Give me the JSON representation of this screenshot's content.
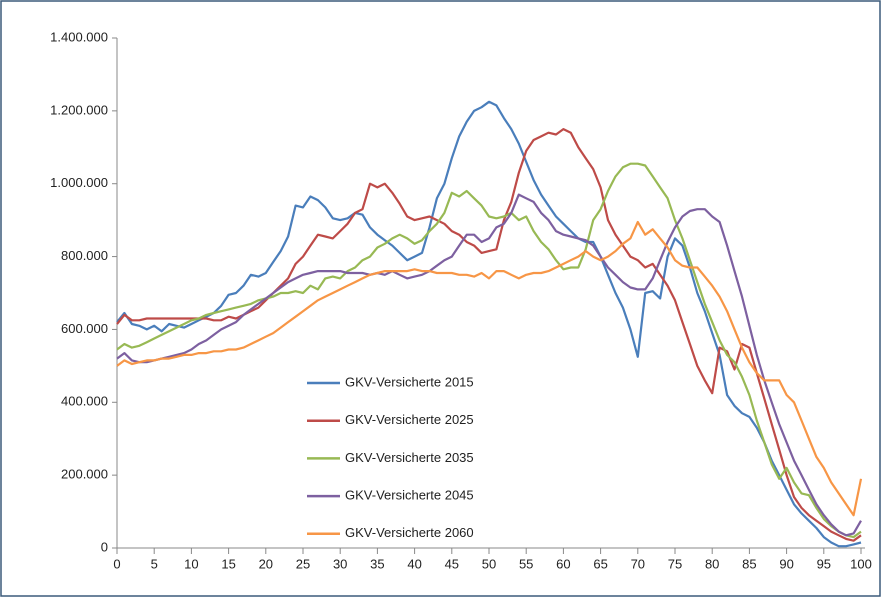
{
  "chart_data": {
    "type": "line",
    "x": [
      0,
      1,
      2,
      3,
      4,
      5,
      6,
      7,
      8,
      9,
      10,
      11,
      12,
      13,
      14,
      15,
      16,
      17,
      18,
      19,
      20,
      21,
      22,
      23,
      24,
      25,
      26,
      27,
      28,
      29,
      30,
      31,
      32,
      33,
      34,
      35,
      36,
      37,
      38,
      39,
      40,
      41,
      42,
      43,
      44,
      45,
      46,
      47,
      48,
      49,
      50,
      51,
      52,
      53,
      54,
      55,
      56,
      57,
      58,
      59,
      60,
      61,
      62,
      63,
      64,
      65,
      66,
      67,
      68,
      69,
      70,
      71,
      72,
      73,
      74,
      75,
      76,
      77,
      78,
      79,
      80,
      81,
      82,
      83,
      84,
      85,
      86,
      87,
      88,
      89,
      90,
      91,
      92,
      93,
      94,
      95,
      96,
      97,
      98,
      99,
      100
    ],
    "xlim": [
      0,
      100
    ],
    "xticks": [
      0,
      5,
      10,
      15,
      20,
      25,
      30,
      35,
      40,
      45,
      50,
      55,
      60,
      65,
      70,
      75,
      80,
      85,
      90,
      95,
      100
    ],
    "ylim": [
      0,
      1400000
    ],
    "yticks": [
      0,
      {
        "value": 200000,
        "label": "200.000"
      },
      {
        "value": 400000,
        "label": "400.000"
      },
      {
        "value": 600000,
        "label": "600.000"
      },
      {
        "value": 800000,
        "label": "800.000"
      },
      {
        "value": 1000000,
        "label": "1.000.000"
      },
      {
        "value": 1200000,
        "label": "1.200.000"
      },
      {
        "value": 1400000,
        "label": "1.400.000"
      }
    ],
    "grid": false,
    "legend": "inside",
    "series": [
      {
        "name": "GKV-Versicherte 2015",
        "color": "#4a7ebb",
        "values": [
          620000,
          645000,
          615000,
          610000,
          600000,
          610000,
          595000,
          615000,
          610000,
          605000,
          615000,
          625000,
          635000,
          645000,
          665000,
          695000,
          700000,
          720000,
          750000,
          745000,
          755000,
          785000,
          815000,
          855000,
          940000,
          935000,
          965000,
          955000,
          935000,
          905000,
          900000,
          905000,
          920000,
          915000,
          880000,
          860000,
          845000,
          830000,
          810000,
          790000,
          800000,
          810000,
          880000,
          960000,
          1000000,
          1070000,
          1130000,
          1170000,
          1200000,
          1210000,
          1225000,
          1215000,
          1180000,
          1150000,
          1110000,
          1060000,
          1010000,
          970000,
          940000,
          910000,
          890000,
          870000,
          850000,
          840000,
          840000,
          800000,
          750000,
          700000,
          660000,
          600000,
          525000,
          700000,
          705000,
          685000,
          800000,
          850000,
          830000,
          770000,
          700000,
          650000,
          590000,
          530000,
          420000,
          390000,
          370000,
          360000,
          330000,
          290000,
          240000,
          200000,
          160000,
          120000,
          95000,
          75000,
          55000,
          30000,
          15000,
          5000,
          5000,
          10000,
          15000
        ]
      },
      {
        "name": "GKV-Versicherte 2025",
        "color": "#be4b48",
        "values": [
          615000,
          640000,
          625000,
          625000,
          630000,
          630000,
          630000,
          630000,
          630000,
          630000,
          630000,
          630000,
          630000,
          625000,
          625000,
          635000,
          630000,
          640000,
          650000,
          660000,
          680000,
          700000,
          720000,
          740000,
          780000,
          800000,
          830000,
          860000,
          855000,
          850000,
          870000,
          890000,
          920000,
          930000,
          1000000,
          990000,
          1000000,
          975000,
          945000,
          910000,
          900000,
          905000,
          910000,
          900000,
          890000,
          870000,
          860000,
          840000,
          830000,
          810000,
          815000,
          820000,
          900000,
          950000,
          1030000,
          1090000,
          1120000,
          1130000,
          1140000,
          1135000,
          1150000,
          1140000,
          1100000,
          1070000,
          1040000,
          990000,
          900000,
          860000,
          830000,
          800000,
          790000,
          770000,
          780000,
          750000,
          720000,
          680000,
          620000,
          560000,
          500000,
          460000,
          425000,
          550000,
          540000,
          490000,
          560000,
          550000,
          480000,
          410000,
          340000,
          270000,
          200000,
          140000,
          110000,
          90000,
          75000,
          60000,
          45000,
          35000,
          25000,
          20000,
          35000
        ]
      },
      {
        "name": "GKV-Versicherte 2035",
        "color": "#98b954",
        "values": [
          545000,
          560000,
          550000,
          555000,
          565000,
          575000,
          585000,
          595000,
          605000,
          615000,
          625000,
          630000,
          640000,
          645000,
          650000,
          655000,
          660000,
          665000,
          670000,
          680000,
          685000,
          690000,
          700000,
          700000,
          705000,
          700000,
          720000,
          710000,
          740000,
          745000,
          740000,
          760000,
          770000,
          790000,
          800000,
          825000,
          835000,
          850000,
          860000,
          850000,
          835000,
          845000,
          870000,
          890000,
          920000,
          975000,
          965000,
          980000,
          960000,
          940000,
          910000,
          905000,
          910000,
          920000,
          900000,
          910000,
          870000,
          840000,
          820000,
          790000,
          765000,
          770000,
          770000,
          820000,
          900000,
          930000,
          980000,
          1020000,
          1045000,
          1055000,
          1055000,
          1050000,
          1020000,
          990000,
          960000,
          900000,
          850000,
          790000,
          730000,
          670000,
          620000,
          570000,
          530000,
          510000,
          470000,
          420000,
          350000,
          290000,
          230000,
          190000,
          220000,
          180000,
          150000,
          145000,
          110000,
          80000,
          60000,
          45000,
          35000,
          30000,
          45000
        ]
      },
      {
        "name": "GKV-Versicherte 2045",
        "color": "#7d60a0",
        "values": [
          520000,
          535000,
          515000,
          510000,
          510000,
          515000,
          520000,
          525000,
          530000,
          535000,
          545000,
          560000,
          570000,
          585000,
          600000,
          610000,
          620000,
          640000,
          655000,
          670000,
          685000,
          700000,
          715000,
          730000,
          740000,
          750000,
          755000,
          760000,
          760000,
          760000,
          760000,
          755000,
          755000,
          755000,
          750000,
          755000,
          750000,
          760000,
          750000,
          740000,
          745000,
          750000,
          760000,
          775000,
          790000,
          800000,
          830000,
          860000,
          860000,
          840000,
          850000,
          880000,
          890000,
          920000,
          970000,
          960000,
          950000,
          920000,
          900000,
          870000,
          860000,
          855000,
          850000,
          845000,
          830000,
          800000,
          770000,
          750000,
          730000,
          715000,
          710000,
          710000,
          740000,
          790000,
          840000,
          880000,
          910000,
          925000,
          930000,
          930000,
          910000,
          895000,
          830000,
          760000,
          690000,
          610000,
          530000,
          460000,
          400000,
          340000,
          290000,
          240000,
          200000,
          160000,
          120000,
          90000,
          65000,
          45000,
          35000,
          40000,
          75000
        ]
      },
      {
        "name": "GKV-Versicherte 2060",
        "color": "#f79646",
        "values": [
          500000,
          515000,
          505000,
          510000,
          515000,
          515000,
          520000,
          520000,
          525000,
          530000,
          530000,
          535000,
          535000,
          540000,
          540000,
          545000,
          545000,
          550000,
          560000,
          570000,
          580000,
          590000,
          605000,
          620000,
          635000,
          650000,
          665000,
          680000,
          690000,
          700000,
          710000,
          720000,
          730000,
          740000,
          750000,
          755000,
          760000,
          760000,
          760000,
          760000,
          765000,
          760000,
          760000,
          755000,
          755000,
          755000,
          750000,
          750000,
          745000,
          755000,
          740000,
          760000,
          760000,
          750000,
          740000,
          750000,
          755000,
          755000,
          760000,
          770000,
          780000,
          790000,
          800000,
          815000,
          800000,
          790000,
          800000,
          815000,
          835000,
          850000,
          895000,
          860000,
          875000,
          850000,
          825000,
          790000,
          775000,
          770000,
          770000,
          745000,
          720000,
          690000,
          650000,
          600000,
          550000,
          510000,
          480000,
          460000,
          460000,
          460000,
          420000,
          400000,
          350000,
          300000,
          250000,
          220000,
          180000,
          150000,
          120000,
          90000,
          190000
        ]
      }
    ]
  }
}
